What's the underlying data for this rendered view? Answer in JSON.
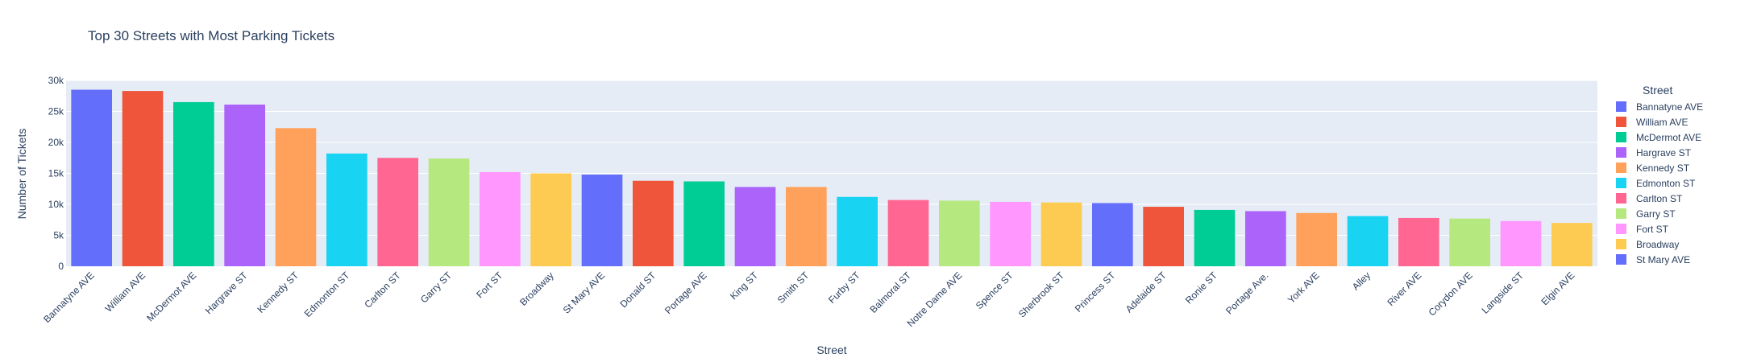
{
  "chart_data": {
    "type": "bar",
    "title": "Top 30 Streets with Most Parking Tickets",
    "xlabel": "Street",
    "ylabel": "Number of Tickets",
    "ylim": [
      0,
      30000
    ],
    "yticks": [
      0,
      5000,
      10000,
      15000,
      20000,
      25000,
      30000
    ],
    "ytick_labels": [
      "0",
      "5k",
      "10k",
      "15k",
      "20k",
      "25k",
      "30k"
    ],
    "grid": true,
    "legend_placement": "right",
    "legend_title": "Street",
    "palette": [
      "#636efa",
      "#EF553B",
      "#00cc96",
      "#ab63fa",
      "#FFA15A",
      "#19d3f3",
      "#FF6692",
      "#B6E880",
      "#FF97FF",
      "#FECB52"
    ],
    "plot_background": "#e5ecf6",
    "categories": [
      "Bannatyne AVE",
      "William AVE",
      "McDermot AVE",
      "Hargrave ST",
      "Kennedy ST",
      "Edmonton ST",
      "Carlton ST",
      "Garry ST",
      "Fort ST",
      "Broadway",
      "St Mary AVE",
      "Donald ST",
      "Portage AVE",
      "King ST",
      "Smith ST",
      "Furby ST",
      "Balmoral ST",
      "Notre Dame AVE",
      "Spence ST",
      "Sherbrook ST",
      "Princess ST",
      "Adelaide ST",
      "Ronie ST",
      "Portage Ave.",
      "York AVE",
      "Alley",
      "River AVE",
      "Corydon AVE",
      "Langside ST",
      "Elgin AVE"
    ],
    "values": [
      28500,
      28300,
      26500,
      26100,
      22300,
      18200,
      17500,
      17400,
      15200,
      15000,
      14800,
      13800,
      13700,
      12800,
      12800,
      11200,
      10700,
      10600,
      10400,
      10300,
      10200,
      9600,
      9100,
      8900,
      8600,
      8100,
      7800,
      7700,
      7300,
      7000
    ],
    "legend_entries": [
      "Bannatyne AVE",
      "William AVE",
      "McDermot AVE",
      "Hargrave ST",
      "Kennedy ST",
      "Edmonton ST",
      "Carlton ST",
      "Garry ST",
      "Fort ST",
      "Broadway",
      "St Mary AVE"
    ]
  }
}
